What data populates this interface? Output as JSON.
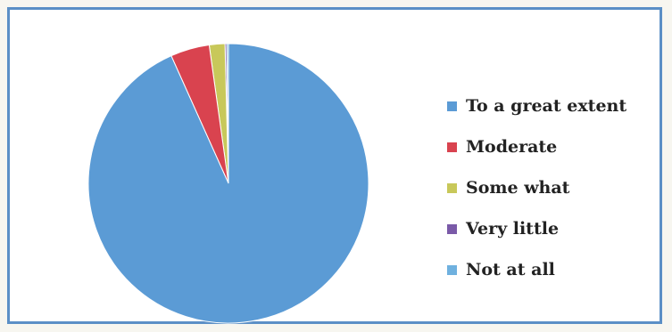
{
  "chart_data": {
    "type": "pie",
    "title": "",
    "categories": [
      "To a great extent",
      "Moderate",
      "Some what",
      "Very little",
      "Not at all"
    ],
    "values": [
      93.3,
      4.5,
      1.8,
      0.2,
      0.2
    ],
    "colors": [
      "#5b9bd5",
      "#d9434f",
      "#c8c85a",
      "#7a5aa8",
      "#6fb1df"
    ],
    "legend_position": "right"
  }
}
